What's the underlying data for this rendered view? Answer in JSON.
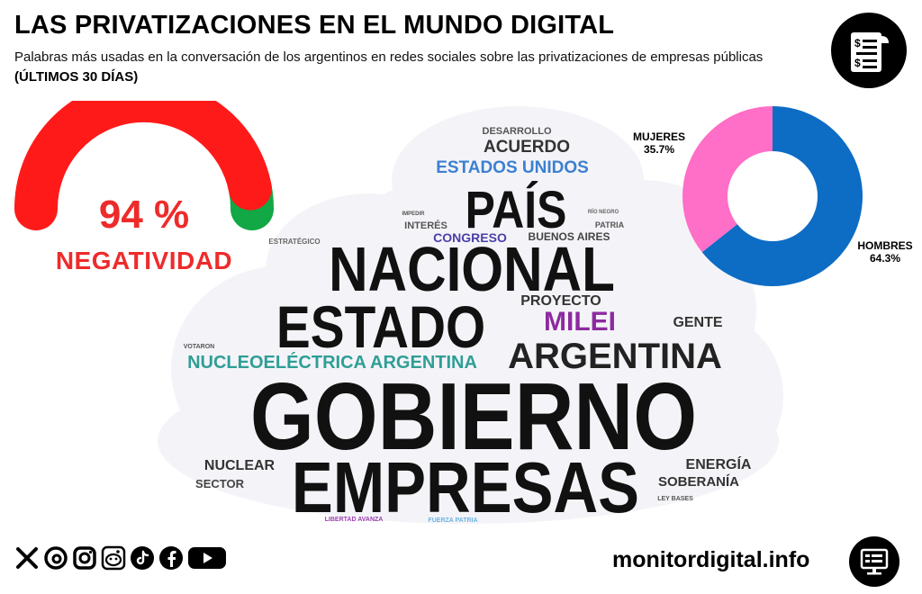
{
  "header": {
    "title": "LAS PRIVATIZACIONES EN EL MUNDO DIGITAL",
    "subtitle": "Palabras más usadas en la conversación de los argentinos en redes sociales sobre las privatizaciones de empresas públicas",
    "period": "(ÚLTIMOS 30 DÍAS)",
    "logo_icon": "document-dollar-icon"
  },
  "chart_data": [
    {
      "type": "gauge",
      "value": 94,
      "value_text": "94 %",
      "label": "NEGATIVIDAD",
      "colors": {
        "negative": "#ff1a1a",
        "positive": "#11a845"
      }
    },
    {
      "type": "wordcloud",
      "words": [
        {
          "text": "GOBIERNO",
          "color": "#111111"
        },
        {
          "text": "EMPRESAS",
          "color": "#111111"
        },
        {
          "text": "NACIONAL",
          "color": "#111111"
        },
        {
          "text": "ESTADO",
          "color": "#111111"
        },
        {
          "text": "PAÍS",
          "color": "#111111"
        },
        {
          "text": "ARGENTINA",
          "color": "#222222"
        },
        {
          "text": "MILEI",
          "color": "#8e2aa0"
        },
        {
          "text": "NUCLEOELÉCTRICA ARGENTINA",
          "color": "#2f9e96"
        },
        {
          "text": "ESTADOS UNIDOS",
          "color": "#3d7fd0"
        },
        {
          "text": "ACUERDO",
          "color": "#333333"
        },
        {
          "text": "PROYECTO",
          "color": "#333333"
        },
        {
          "text": "GENTE",
          "color": "#333333"
        },
        {
          "text": "NUCLEAR",
          "color": "#333333"
        },
        {
          "text": "ENERGÍA",
          "color": "#333333"
        },
        {
          "text": "SOBERANÍA",
          "color": "#333333"
        },
        {
          "text": "CONGRESO",
          "color": "#4b3fa8"
        },
        {
          "text": "BUENOS AIRES",
          "color": "#444444"
        },
        {
          "text": "DESARROLLO",
          "color": "#555555"
        },
        {
          "text": "SECTOR",
          "color": "#444444"
        },
        {
          "text": "INTERÉS",
          "color": "#555555"
        },
        {
          "text": "PATRIA",
          "color": "#555555"
        },
        {
          "text": "ESTRATÉGICO",
          "color": "#666666"
        },
        {
          "text": "VOTARON",
          "color": "#555555"
        },
        {
          "text": "IMPEDIR",
          "color": "#555555"
        },
        {
          "text": "RÍO NEGRO",
          "color": "#666666"
        },
        {
          "text": "LEY BASES",
          "color": "#555555"
        },
        {
          "text": "LIBERTAD AVANZA",
          "color": "#9b3fb0"
        },
        {
          "text": "FUERZA PATRIA",
          "color": "#6fb3e0"
        }
      ]
    },
    {
      "type": "pie",
      "donut": true,
      "categories": [
        "MUJERES",
        "HOMBRES"
      ],
      "values": [
        35.7,
        64.3
      ],
      "value_labels": [
        "35.7%",
        "64.3%"
      ],
      "colors": [
        "#ff6ec7",
        "#0d6cc4"
      ]
    }
  ],
  "footer": {
    "social": [
      {
        "icon": "x-icon"
      },
      {
        "icon": "threads-icon"
      },
      {
        "icon": "instagram-icon"
      },
      {
        "icon": "reddit-icon"
      },
      {
        "icon": "tiktok-icon"
      },
      {
        "icon": "facebook-icon"
      },
      {
        "icon": "youtube-icon"
      }
    ],
    "site": "monitordigital.info",
    "logo_icon": "monitor-icon"
  }
}
